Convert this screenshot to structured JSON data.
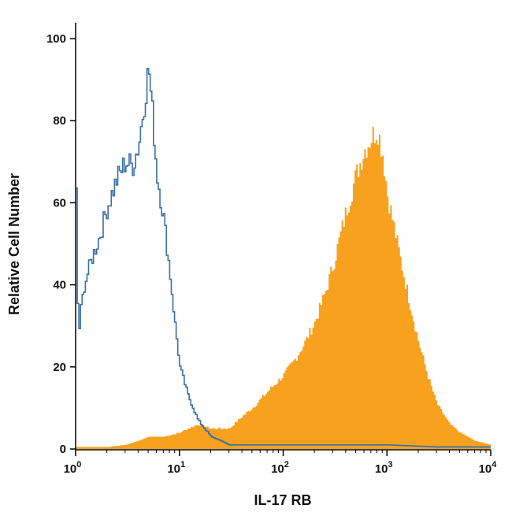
{
  "chart_data": {
    "type": "histogram",
    "xscale": "log",
    "xlim": [
      1,
      10000
    ],
    "ylim": [
      0,
      100
    ],
    "xlabel": "IL-17 RB",
    "ylabel": "Relative Cell Number",
    "x_ticks": [
      {
        "value": 1,
        "base": "10",
        "exp": "0"
      },
      {
        "value": 10,
        "base": "10",
        "exp": "1"
      },
      {
        "value": 100,
        "base": "10",
        "exp": "2"
      },
      {
        "value": 1000,
        "base": "10",
        "exp": "3"
      },
      {
        "value": 10000,
        "base": "10",
        "exp": "4"
      }
    ],
    "y_ticks": [
      0,
      20,
      40,
      60,
      80,
      100
    ],
    "series": [
      {
        "style": "filled",
        "color": "#f7a11f",
        "x": [
          1,
          1.5,
          2,
          3,
          4,
          5,
          7,
          10,
          12,
          15,
          20,
          25,
          30,
          40,
          50,
          70,
          100,
          130,
          160,
          200,
          250,
          300,
          350,
          400,
          500,
          600,
          700,
          800,
          900,
          1000,
          1200,
          1500,
          2000,
          2500,
          3000,
          4000,
          5000,
          7000,
          10000
        ],
        "y": [
          0.5,
          0.5,
          0.5,
          1,
          2,
          3,
          3,
          4,
          5,
          6,
          5,
          5,
          5,
          8,
          10,
          14,
          18,
          22,
          26,
          31,
          38,
          45,
          52,
          58,
          67,
          73,
          76,
          78,
          72,
          62,
          52,
          40,
          26,
          17,
          11,
          6,
          4,
          2,
          1
        ]
      },
      {
        "style": "outline",
        "color": "#3a6ea5",
        "x": [
          1,
          1.05,
          1.1,
          1.2,
          1.4,
          1.7,
          2,
          2.5,
          3,
          3.5,
          4,
          4.5,
          5,
          5.5,
          6,
          7,
          8,
          9,
          10,
          12,
          15,
          20,
          25,
          30,
          40,
          50,
          70,
          100,
          200,
          400,
          1000,
          3000,
          10000
        ],
        "y": [
          62,
          26,
          33,
          40,
          46,
          52,
          59,
          66,
          70,
          69,
          74,
          84,
          93,
          80,
          67,
          56,
          43,
          30,
          20,
          13,
          7,
          3,
          2,
          1,
          1,
          1,
          1,
          1,
          1,
          1,
          1,
          0.5,
          0.5
        ]
      }
    ]
  }
}
